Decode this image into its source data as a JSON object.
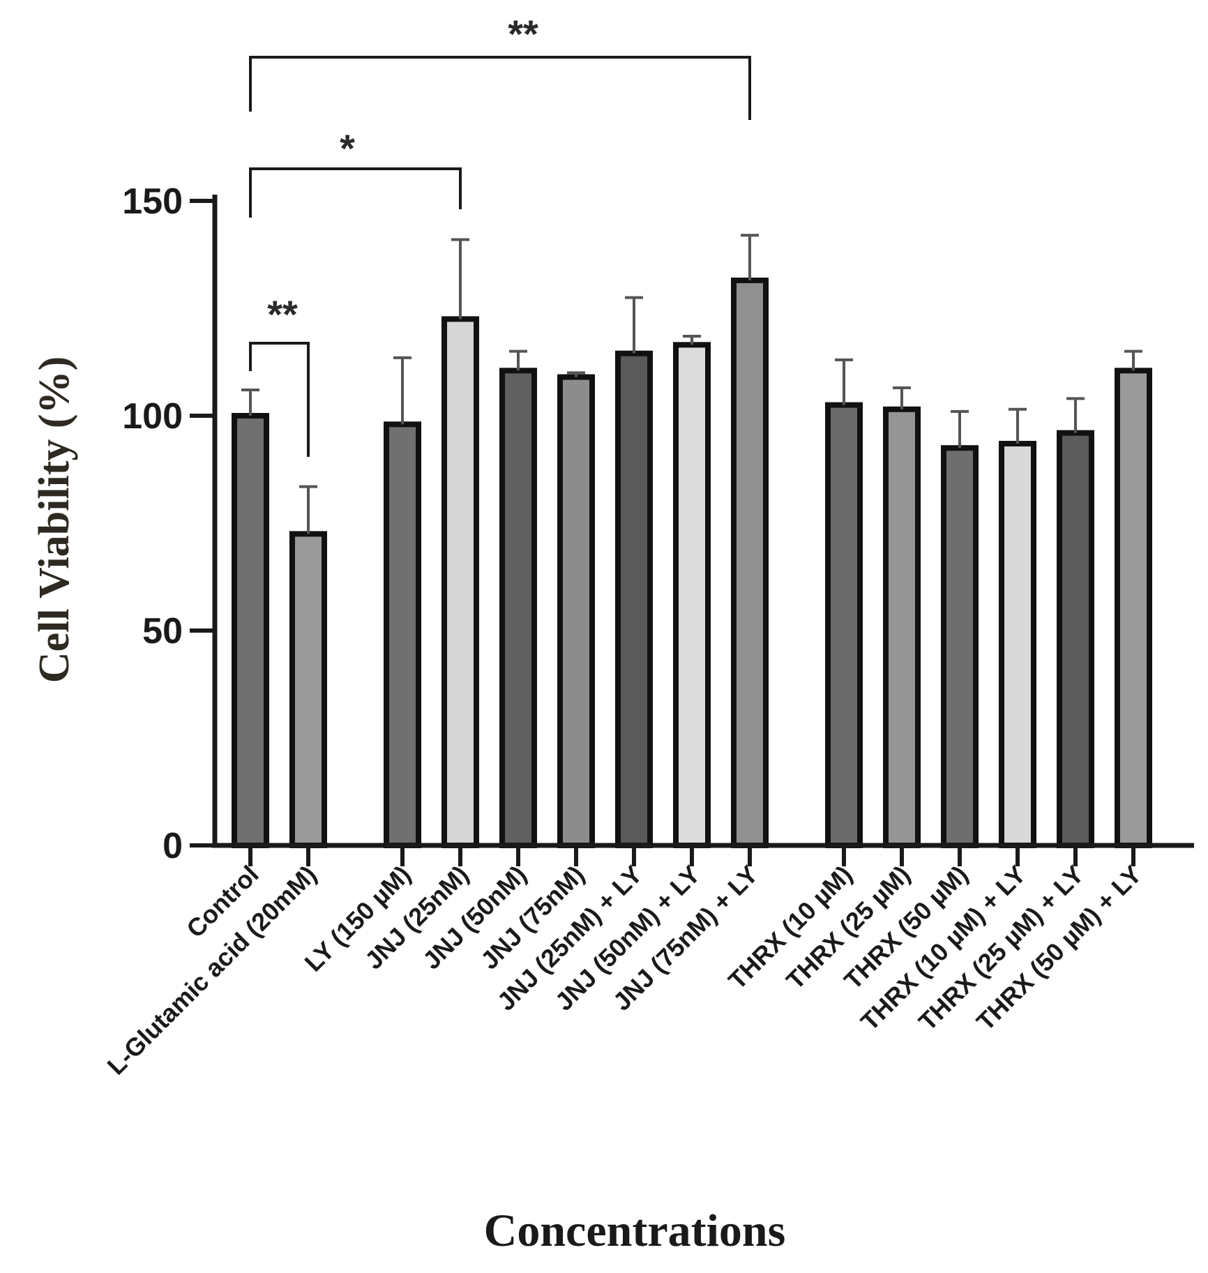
{
  "chart_data": {
    "type": "bar",
    "title": "",
    "xlabel": "Concentrations",
    "ylabel": "Cell Viability (%)",
    "ylim": [
      0,
      150
    ],
    "yticks": [
      0,
      50,
      100,
      150
    ],
    "grid": false,
    "categories": [
      "Control",
      "L-Glutamic acid (20mM)",
      "LY (150 µM)",
      "JNJ (25nM)",
      "JNJ (50nM)",
      "JNJ (75nM)",
      "JNJ (25nM) + LY",
      "JNJ (50nM) + LY",
      "JNJ (75nM) + LY",
      "THRX (10 µM)",
      "THRX (25 µM)",
      "THRX (50 µM)",
      "THRX (10 µM) + LY",
      "THRX (25 µM) + LY",
      "THRX (50 µM) + LY"
    ],
    "values": [
      100,
      72.5,
      98,
      122.5,
      110.5,
      109,
      114.5,
      116.5,
      131.5,
      102.5,
      101.5,
      92.5,
      93.5,
      96,
      110.5
    ],
    "errors": [
      6,
      11,
      15.5,
      18.5,
      4.5,
      1,
      13,
      2,
      10.5,
      10.5,
      5,
      8.5,
      8,
      8,
      4.5
    ],
    "group_breaks_after": [
      1,
      8
    ],
    "bar_colors": [
      "#707070",
      "#9a9a9a",
      "#707070",
      "#d6d6d6",
      "#606060",
      "#8c8c8c",
      "#5a5a5a",
      "#dcdcdc",
      "#909090",
      "#6a6a6a",
      "#959595",
      "#6e6e6e",
      "#d8d8d8",
      "#5c5c5c",
      "#9a9a9a"
    ],
    "significance": [
      {
        "from": 0,
        "to": 1,
        "label": "**"
      },
      {
        "from": 0,
        "to": 3,
        "label": "*"
      },
      {
        "from": 0,
        "to": 8,
        "label": "**"
      }
    ]
  }
}
